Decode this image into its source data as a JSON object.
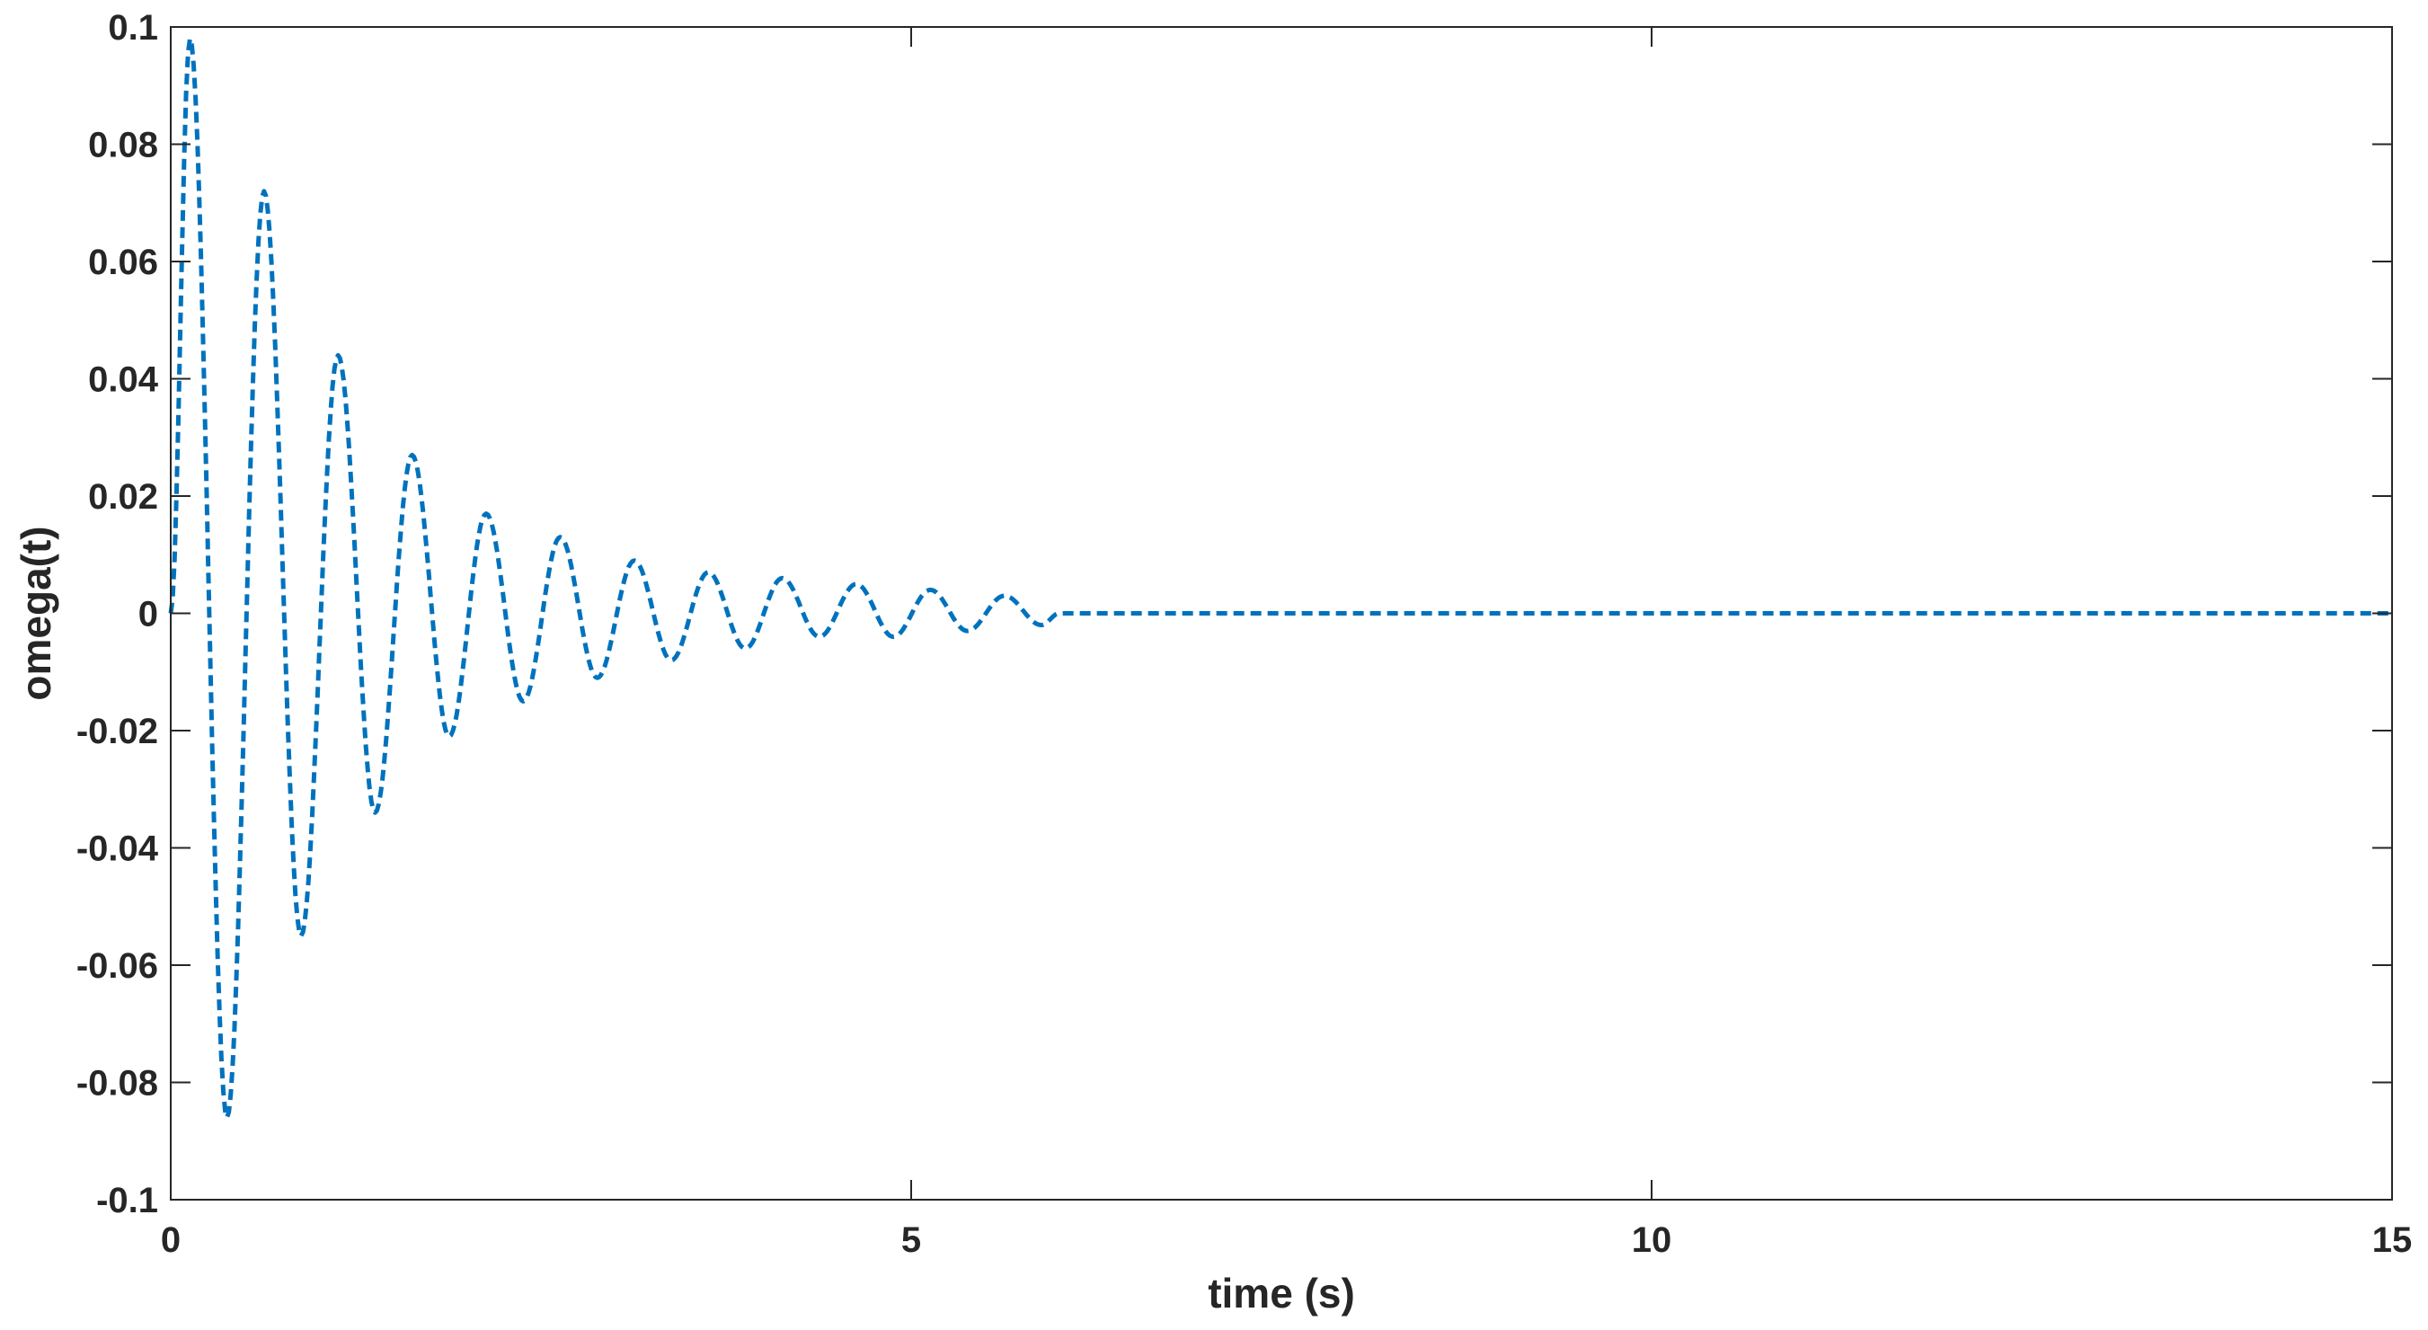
{
  "chart_data": {
    "type": "line",
    "xlabel": "time (s)",
    "ylabel": "omega(t)",
    "xlim": [
      0,
      15
    ],
    "ylim": [
      -0.1,
      0.1
    ],
    "x_ticks": [
      0,
      5,
      10,
      15
    ],
    "y_ticks": [
      -0.1,
      -0.08,
      -0.06,
      -0.04,
      -0.02,
      0,
      0.02,
      0.04,
      0.06,
      0.08,
      0.1
    ],
    "x_tick_labels": [
      "0",
      "5",
      "10",
      "15"
    ],
    "y_tick_labels": [
      "-0.1",
      "-0.08",
      "-0.06",
      "-0.04",
      "-0.02",
      "0",
      "0.02",
      "0.04",
      "0.06",
      "0.08",
      "0.1"
    ],
    "grid": false,
    "box": true,
    "series": [
      {
        "color": "#0072BD",
        "line_style": "dashed",
        "x": [
          0,
          0.13,
          0.38,
          0.63,
          0.88,
          1.13,
          1.38,
          1.63,
          1.88,
          2.13,
          2.38,
          2.63,
          2.88,
          3.13,
          3.38,
          3.63,
          3.88,
          4.13,
          4.38,
          4.63,
          4.88,
          5.13,
          5.38,
          5.63,
          5.88,
          6.0,
          15
        ],
        "y": [
          0,
          0.098,
          -0.086,
          0.072,
          -0.055,
          0.044,
          -0.034,
          0.027,
          -0.021,
          0.017,
          -0.015,
          0.013,
          -0.011,
          0.009,
          -0.008,
          0.007,
          -0.006,
          0.006,
          -0.004,
          0.005,
          -0.004,
          0.004,
          -0.003,
          0.003,
          -0.002,
          0,
          0
        ]
      }
    ]
  }
}
